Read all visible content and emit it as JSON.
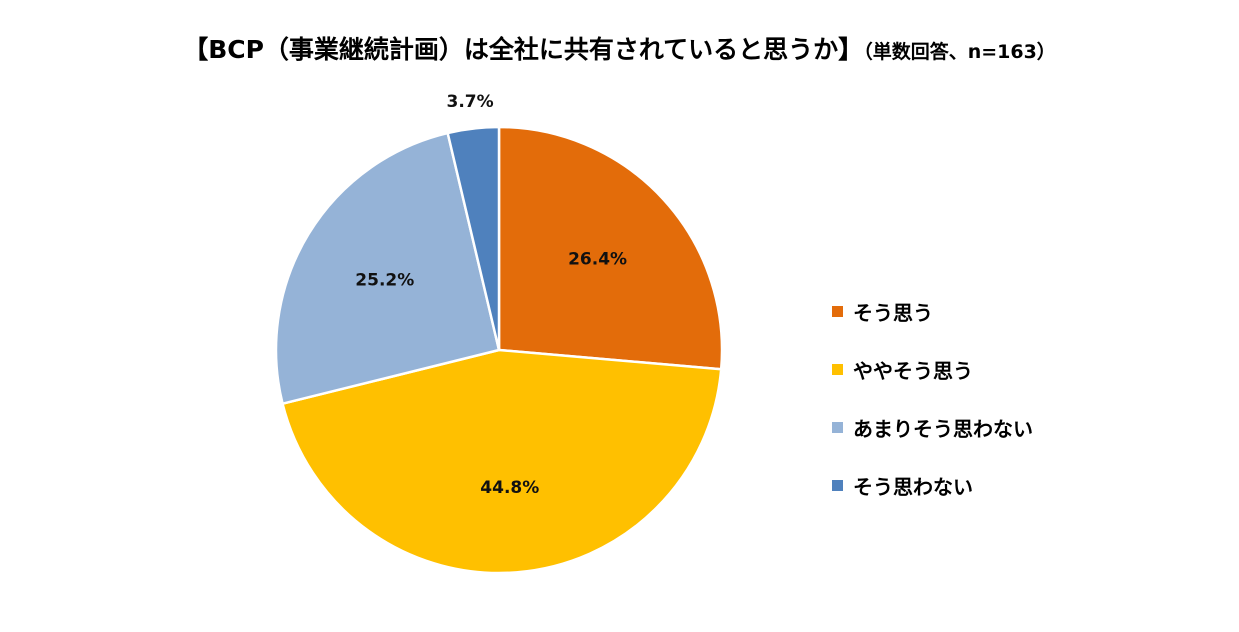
{
  "chart_data": {
    "type": "pie",
    "title": "【BCP（事業継続計画）は全社に共有されていると思うか】",
    "subtitle": "（単数回答、n=163）",
    "categories": [
      "そう思う",
      "ややそう思う",
      "あまりそう思わない",
      "そう思わない"
    ],
    "values": [
      26.4,
      44.8,
      25.2,
      3.7
    ],
    "labels": [
      "26.4%",
      "44.8%",
      "25.2%",
      "3.7%"
    ],
    "colors": [
      "#E36C0A",
      "#FFC000",
      "#95B3D7",
      "#4F81BD"
    ],
    "legend_position": "right"
  }
}
